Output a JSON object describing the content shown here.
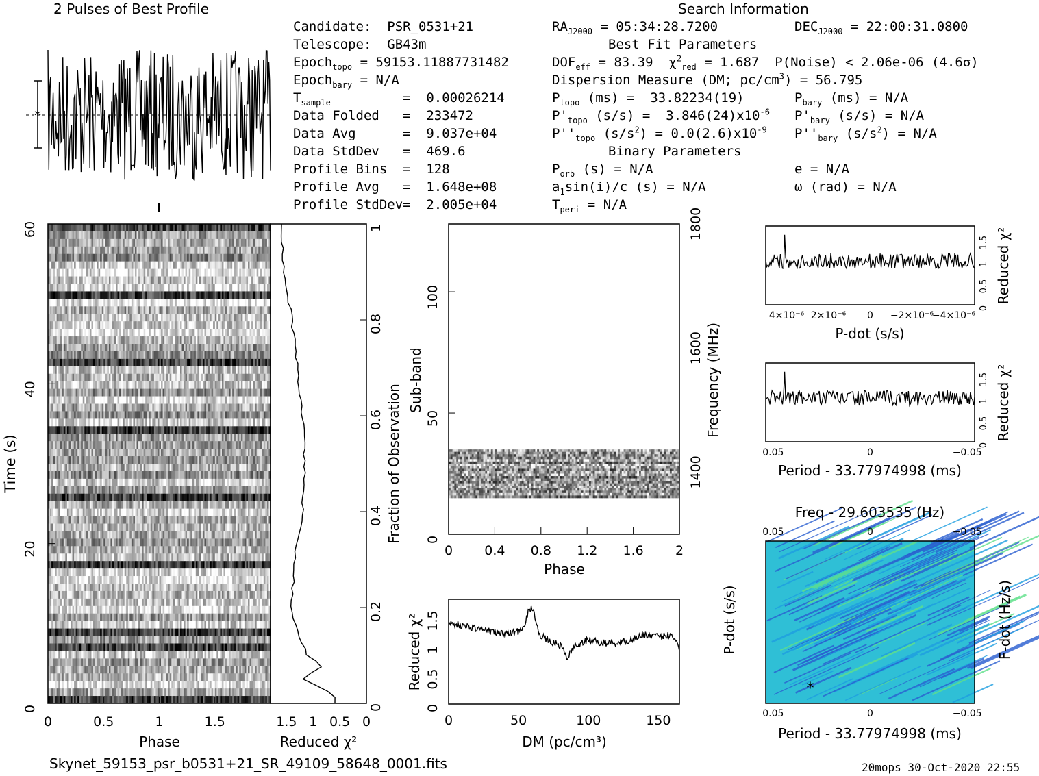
{
  "title_profile": "2 Pulses of Best Profile",
  "title_search": "Search Information",
  "footer_file": "Skynet_59153_psr_b0531+21_SR_49109_58648_0001.fits",
  "footer_stamp": "20mops  30-Oct-2020  22:55",
  "info_left": [
    {
      "label": "Candidate:",
      "value": "PSR_0531+21"
    },
    {
      "label": "Telescope:",
      "value": "GB43m"
    },
    {
      "label": "Epoch",
      "sub": "topo",
      "value": "= 59153.11887731482"
    },
    {
      "label": "Epoch",
      "sub": "bary",
      "value": "= N/A"
    },
    {
      "label": "T",
      "sub": "sample",
      "value": "0.00026214"
    },
    {
      "label": "Data Folded",
      "value": "233472"
    },
    {
      "label": "Data Avg",
      "value": "9.037e+04"
    },
    {
      "label": "Data StdDev",
      "value": "469.6"
    },
    {
      "label": "Profile Bins",
      "value": "128"
    },
    {
      "label": "Profile Avg",
      "value": "1.648e+08"
    },
    {
      "label": "Profile StdDev",
      "value": "2.005e+04"
    }
  ],
  "info_mid": {
    "ra": "05:34:28.7200",
    "dec": "22:00:31.0800",
    "best_fit": "Best Fit Parameters",
    "dof": "83.39",
    "chi2": "1.687",
    "pnoise": "P(Noise) < 2.06e-06   (4.6σ)",
    "dm": "Dispersion Measure (DM; pc/cm",
    "dm_val": ") = 56.795",
    "ptopo": "33.82234(19)",
    "pdtopo": "3.846(24)x10",
    "pdtopo_exp": "-6",
    "pddtopo": "0.0(2.6)x10",
    "pddtopo_exp": "-9",
    "pbary": "N/A",
    "binary": "Binary Parameters",
    "porb": "N/A",
    "asini": "N/A",
    "tperi": "N/A",
    "e": "N/A",
    "omega": "N/A"
  },
  "axes": {
    "time_label": "Time (s)",
    "phase_label": "Phase",
    "redchi_label": "Reduced χ²",
    "fraction_label": "Fraction of Observation",
    "subband_label": "Sub-band",
    "freq_label": "Frequency (MHz)",
    "dm_label": "DM (pc/cm³)",
    "pdot_label": "P-dot (s/s)",
    "period_label": "Period - 33.77974998 (ms)",
    "freq_title": "Freq - 29.603535 (Hz)",
    "fdot_label": "F-dot (Hz/s)"
  },
  "ticks": {
    "time": [
      "0",
      "20",
      "40",
      "60"
    ],
    "phase": [
      "0",
      "0.5",
      "1",
      "1.5"
    ],
    "redchi_x": [
      "1.5",
      "1",
      "0.5",
      "0"
    ],
    "fraction": [
      "0",
      "0.2",
      "0.4",
      "0.6",
      "0.8",
      "1"
    ],
    "subband": [
      "0",
      "50",
      "100"
    ],
    "freq": [
      "1400",
      "1600",
      "1800"
    ],
    "phase2": [
      "0",
      "0.4",
      "0.8",
      "1.2",
      "1.6",
      "2"
    ],
    "dm": [
      "0",
      "50",
      "100",
      "150"
    ],
    "redchi_y": [
      "0",
      "0.5",
      "1",
      "1.5"
    ],
    "pdot_x": [
      "4×10⁻⁶",
      "2×10⁻⁶",
      "0",
      "−2×10⁻⁶",
      "−4×10⁻⁶"
    ],
    "period_x": [
      "0.05",
      "0",
      "−0.05"
    ]
  },
  "chart_data": [
    {
      "type": "line",
      "title": "2 Pulses of Best Profile",
      "x": [
        0,
        2
      ],
      "note_series": "pulse profile (two cycles)"
    },
    {
      "type": "heatmap",
      "xlabel": "Phase",
      "ylabel": "Time (s)",
      "xlim": [
        0,
        2
      ],
      "ylim": [
        0,
        62
      ]
    },
    {
      "type": "line",
      "xlabel": "Reduced χ²",
      "ylabel": "Fraction of Observation",
      "xlim": [
        0,
        1.8
      ],
      "ylim": [
        0,
        1
      ],
      "y": [
        0.02,
        0.05,
        0.08,
        0.1,
        0.15,
        0.2,
        0.3,
        0.4,
        0.5,
        0.6,
        0.7,
        0.8,
        0.9,
        1.0
      ],
      "x": [
        0.6,
        1.2,
        0.8,
        1.1,
        1.3,
        1.4,
        1.35,
        1.2,
        1.15,
        1.2,
        1.3,
        1.4,
        1.55,
        1.6
      ]
    },
    {
      "type": "heatmap",
      "xlabel": "Phase",
      "ylabel": "Sub-band",
      "xlim": [
        0,
        2
      ],
      "ylim": [
        0,
        128
      ],
      "band_rows": [
        15,
        35
      ]
    },
    {
      "type": "line",
      "xlabel": "DM (pc/cm³)",
      "ylabel": "Reduced χ²",
      "xlim": [
        0,
        165
      ],
      "ylim": [
        0,
        1.8
      ],
      "x": [
        0,
        10,
        20,
        30,
        40,
        50,
        55,
        57,
        59,
        62,
        65,
        70,
        80,
        85,
        90,
        100,
        110,
        120,
        130,
        140,
        150,
        160,
        165
      ],
      "y": [
        1.4,
        1.35,
        1.3,
        1.25,
        1.2,
        1.25,
        1.4,
        1.6,
        1.65,
        1.5,
        1.2,
        1.1,
        1.0,
        0.8,
        1.0,
        1.1,
        1.05,
        1.05,
        1.1,
        1.2,
        1.15,
        1.2,
        0.95
      ]
    },
    {
      "type": "line",
      "xlabel": "P-dot (s/s)",
      "ylabel": "Reduced χ²",
      "ylim": [
        0,
        1.8
      ]
    },
    {
      "type": "line",
      "xlabel": "Period - 33.77974998 (ms)",
      "ylabel": "Reduced χ²",
      "ylim": [
        0,
        1.8
      ]
    },
    {
      "type": "heatmap",
      "title": "Freq - 29.603535 (Hz)",
      "xlabel": "Period - 33.77974998 (ms)",
      "ylabel": "P-dot (s/s)"
    }
  ]
}
